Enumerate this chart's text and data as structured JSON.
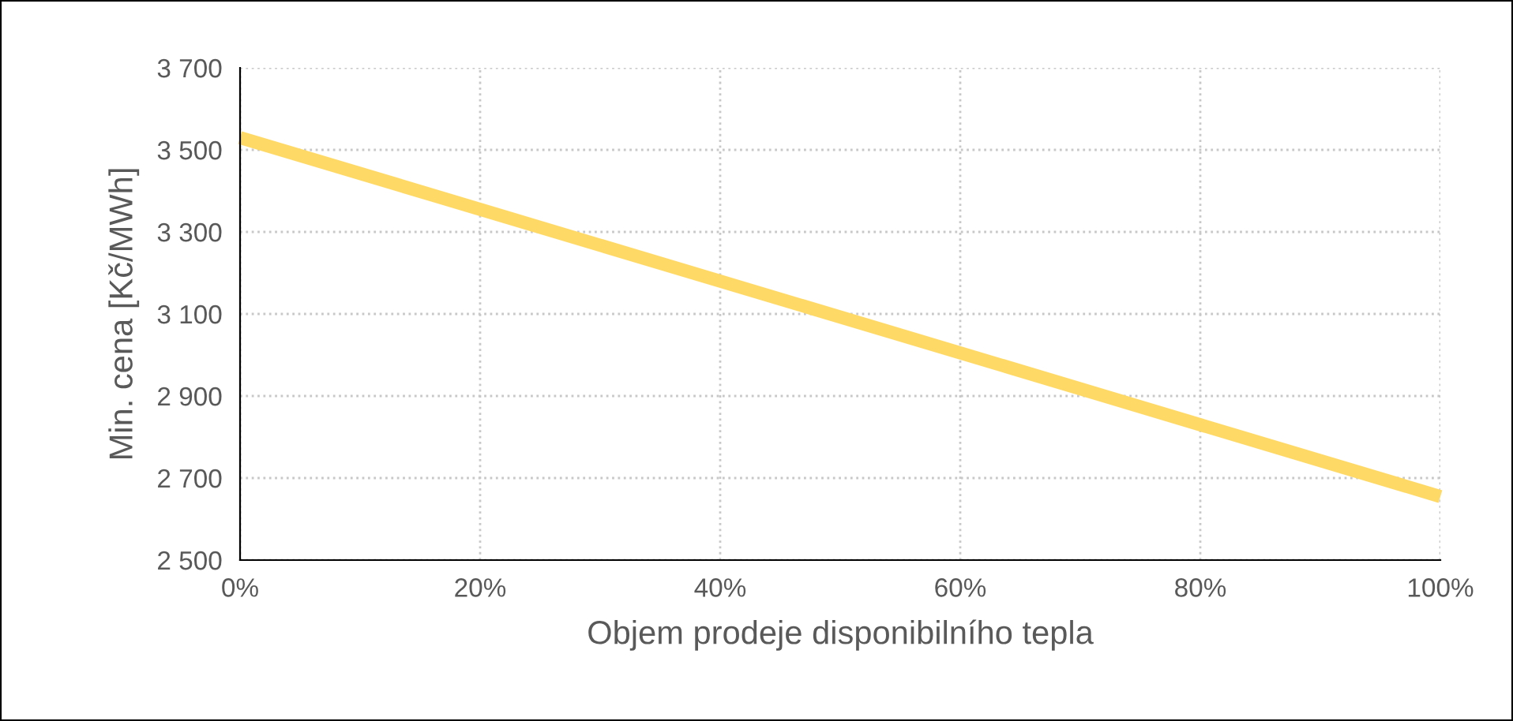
{
  "chart_data": {
    "type": "line",
    "xlabel": "Objem prodeje disponibilního tepla",
    "ylabel": "Min. cena [Kč/MWh]",
    "x": [
      0,
      100
    ],
    "series": [
      {
        "color": "#ffd966",
        "values": [
          3530,
          2655
        ]
      }
    ],
    "xlim": [
      0,
      100
    ],
    "xticks": [
      {
        "value": 0,
        "label": "0%"
      },
      {
        "value": 20,
        "label": "20%"
      },
      {
        "value": 40,
        "label": "40%"
      },
      {
        "value": 60,
        "label": "60%"
      },
      {
        "value": 80,
        "label": "80%"
      },
      {
        "value": 100,
        "label": "100%"
      }
    ],
    "ylim": [
      2500,
      3700
    ],
    "yticks": [
      {
        "value": 2500,
        "label": "2 500"
      },
      {
        "value": 2700,
        "label": "2 700"
      },
      {
        "value": 2900,
        "label": "2 900"
      },
      {
        "value": 3100,
        "label": "3 100"
      },
      {
        "value": 3300,
        "label": "3 300"
      },
      {
        "value": 3500,
        "label": "3 500"
      },
      {
        "value": 3700,
        "label": "3 700"
      }
    ],
    "grid": true,
    "marker": "none",
    "line_style": "solid",
    "legend": false
  }
}
